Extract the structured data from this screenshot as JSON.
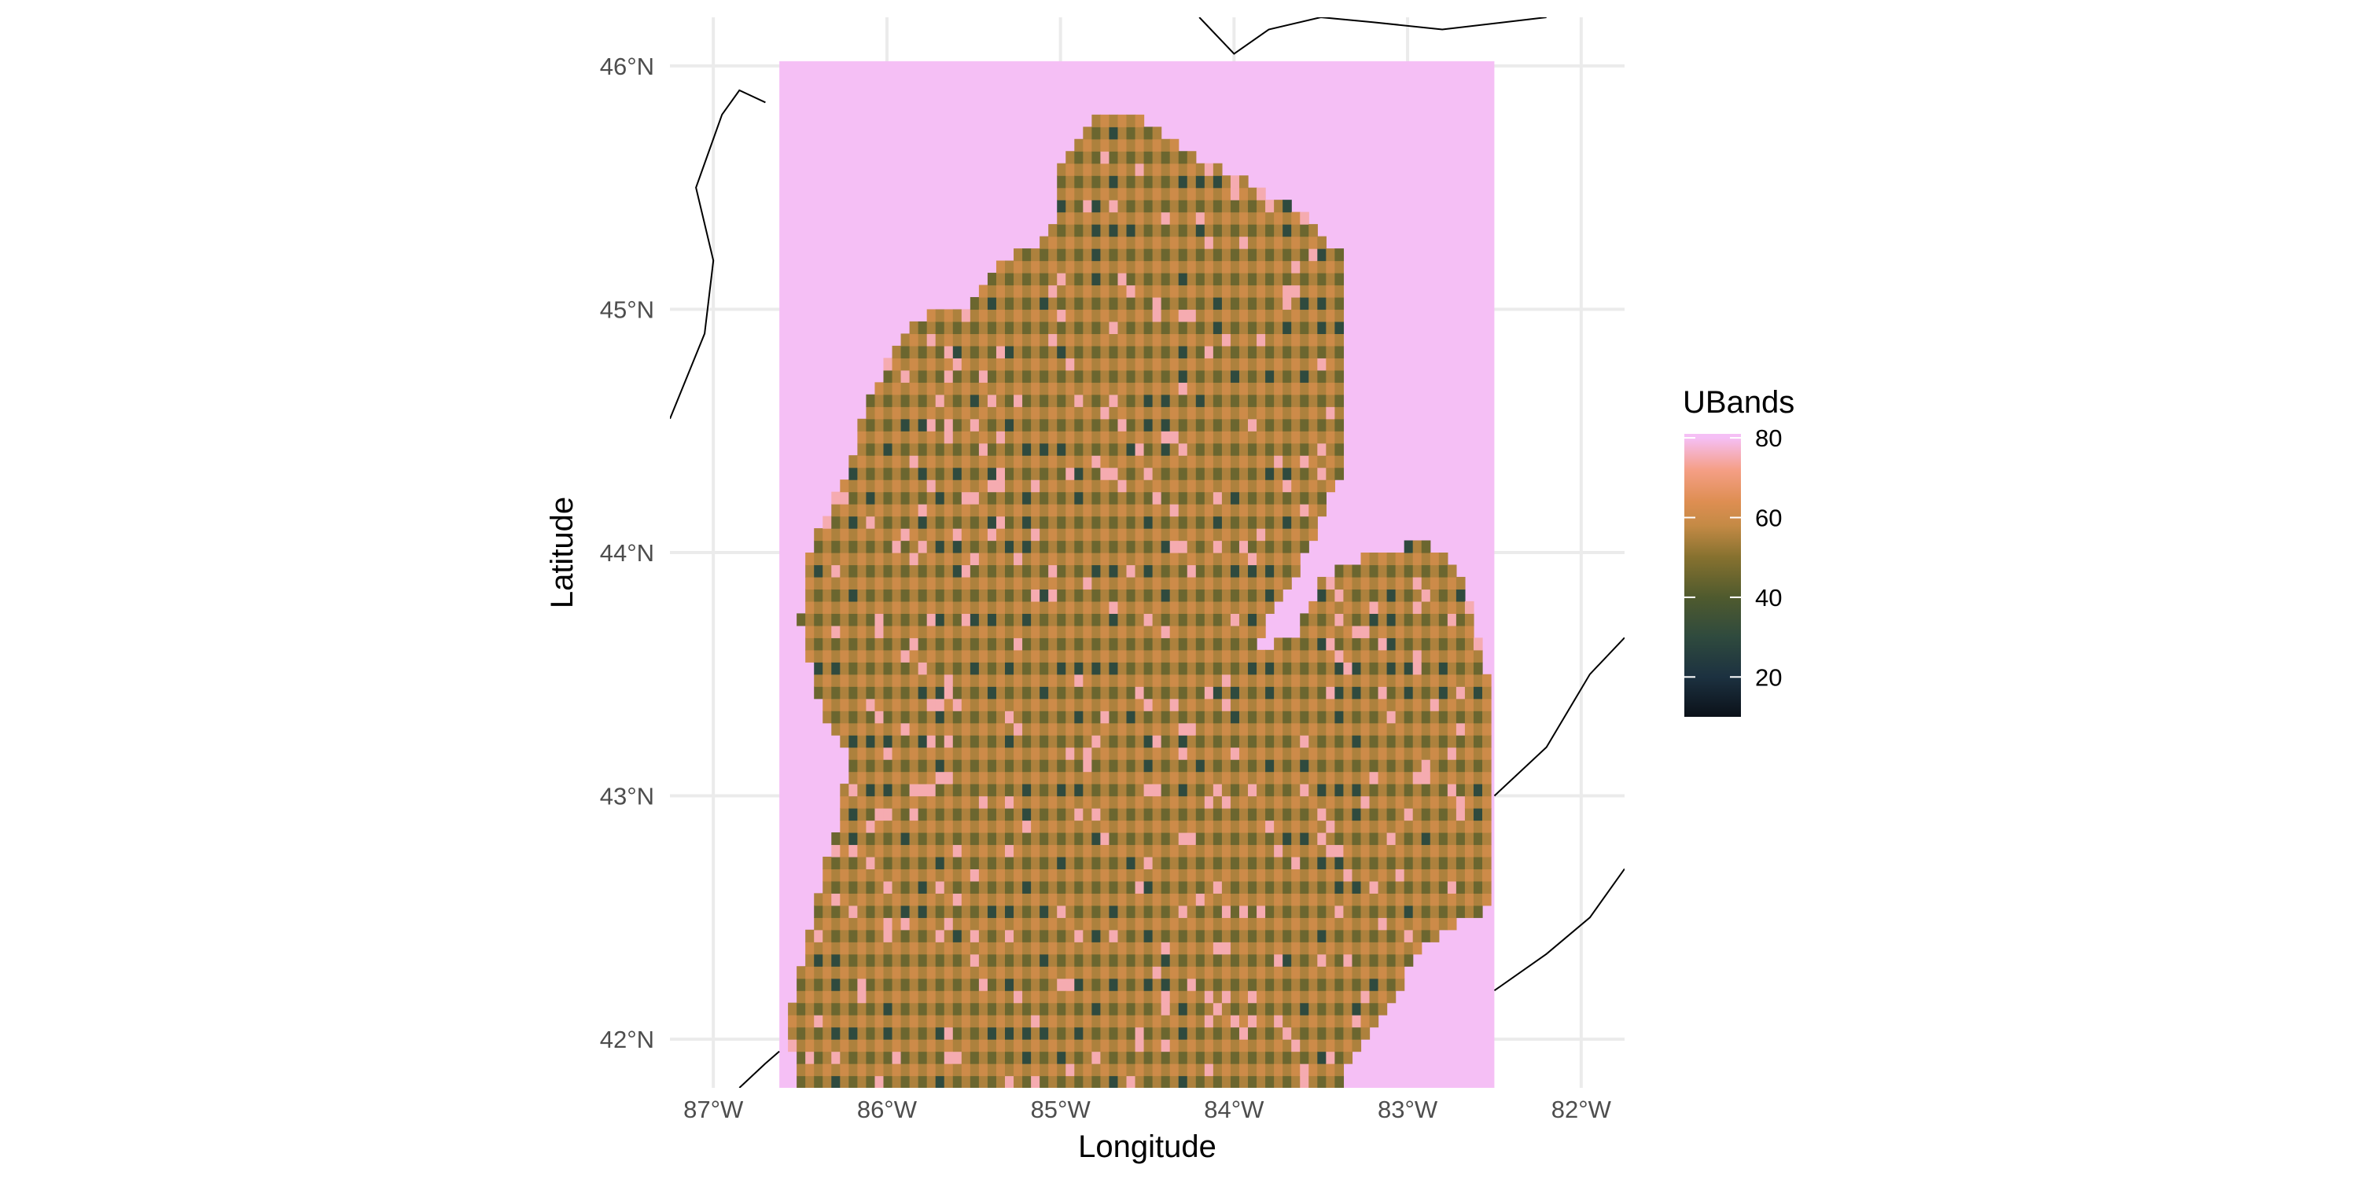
{
  "map": {
    "x_axis_title": "Longitude",
    "y_axis_title": "Latitude",
    "x_ticks": [
      {
        "value": -87,
        "label": "87°W"
      },
      {
        "value": -86,
        "label": "86°W"
      },
      {
        "value": -85,
        "label": "85°W"
      },
      {
        "value": -84,
        "label": "84°W"
      },
      {
        "value": -83,
        "label": "83°W"
      },
      {
        "value": -82,
        "label": "82°W"
      }
    ],
    "y_ticks": [
      {
        "value": 46,
        "label": "46°N"
      },
      {
        "value": 45,
        "label": "45°N"
      },
      {
        "value": 44,
        "label": "44°N"
      },
      {
        "value": 43,
        "label": "43°N"
      },
      {
        "value": 42,
        "label": "42°N"
      }
    ],
    "xlim": [
      -87.25,
      -81.75
    ],
    "ylim": [
      41.8,
      46.2
    ],
    "raster_extent": {
      "lon": [
        -86.62,
        -82.5
      ],
      "lat": [
        41.8,
        46.02
      ]
    },
    "grid": true,
    "background_value": 80
  },
  "legend": {
    "title": "UBands",
    "placement": "right",
    "range": [
      10,
      81
    ],
    "ticks": [
      {
        "value": 80,
        "label": "80"
      },
      {
        "value": 60,
        "label": "60"
      },
      {
        "value": 40,
        "label": "40"
      },
      {
        "value": 20,
        "label": "20"
      }
    ],
    "colors": [
      {
        "value": 10,
        "color": "#0b1119"
      },
      {
        "value": 20,
        "color": "#1c3140"
      },
      {
        "value": 30,
        "color": "#2f4a3e"
      },
      {
        "value": 40,
        "color": "#4f5a2e"
      },
      {
        "value": 50,
        "color": "#86712f"
      },
      {
        "value": 58,
        "color": "#c48a45"
      },
      {
        "value": 64,
        "color": "#de8e52"
      },
      {
        "value": 72,
        "color": "#f59f86"
      },
      {
        "value": 80,
        "color": "#f5bff5"
      }
    ]
  },
  "chart_data": {
    "type": "heatmap",
    "title": "",
    "xlabel": "Longitude",
    "ylabel": "Latitude",
    "xlim": [
      -87.25,
      -81.75
    ],
    "ylim": [
      41.8,
      46.2
    ],
    "zlabel": "UBands",
    "zlim": [
      10,
      81
    ],
    "fill_value_outside_land": 80,
    "typical_land_values": [
      30,
      45,
      55,
      60,
      75
    ],
    "land_polygon": [
      [
        -86.5,
        41.8
      ],
      [
        -86.58,
        42.05
      ],
      [
        -86.45,
        42.45
      ],
      [
        -86.3,
        42.85
      ],
      [
        -86.22,
        43.15
      ],
      [
        -86.4,
        43.4
      ],
      [
        -86.5,
        43.7
      ],
      [
        -86.45,
        44.0
      ],
      [
        -86.22,
        44.35
      ],
      [
        -86.12,
        44.6
      ],
      [
        -85.95,
        44.85
      ],
      [
        -85.75,
        45.0
      ],
      [
        -85.5,
        45.02
      ],
      [
        -85.35,
        45.2
      ],
      [
        -85.05,
        45.3
      ],
      [
        -85.02,
        45.55
      ],
      [
        -84.8,
        45.8
      ],
      [
        -84.55,
        45.8
      ],
      [
        -84.3,
        45.65
      ],
      [
        -84.0,
        45.55
      ],
      [
        -83.65,
        45.42
      ],
      [
        -83.35,
        45.2
      ],
      [
        -83.38,
        44.9
      ],
      [
        -83.35,
        44.4
      ],
      [
        -83.55,
        44.05
      ],
      [
        -83.8,
        43.72
      ],
      [
        -83.9,
        43.6
      ],
      [
        -83.65,
        43.65
      ],
      [
        -83.5,
        43.9
      ],
      [
        -83.2,
        44.0
      ],
      [
        -82.88,
        44.05
      ],
      [
        -82.68,
        43.9
      ],
      [
        -82.55,
        43.55
      ],
      [
        -82.5,
        43.2
      ],
      [
        -82.5,
        42.6
      ],
      [
        -82.6,
        42.52
      ],
      [
        -82.9,
        42.4
      ],
      [
        -83.1,
        42.15
      ],
      [
        -83.35,
        41.88
      ],
      [
        -83.4,
        41.8
      ]
    ],
    "notes_markers": []
  }
}
